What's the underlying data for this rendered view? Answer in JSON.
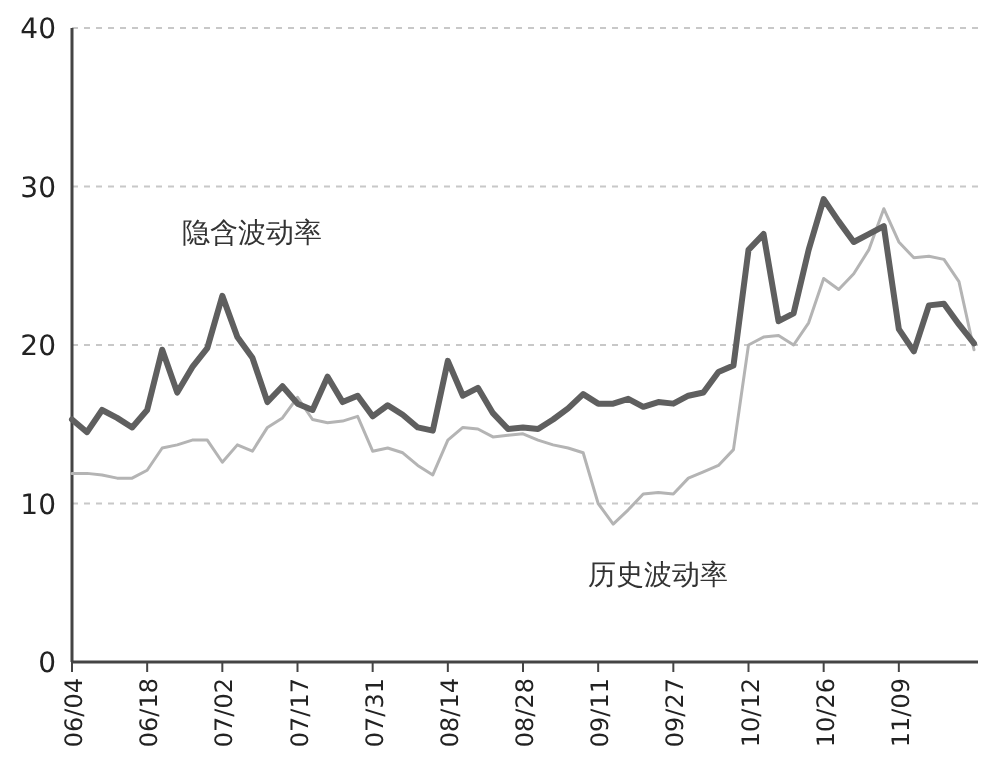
{
  "chart_data": {
    "type": "line",
    "categories": [
      "06/04",
      null,
      null,
      null,
      null,
      "06/18",
      null,
      null,
      null,
      null,
      "07/02",
      null,
      null,
      null,
      null,
      "07/17",
      null,
      null,
      null,
      null,
      "07/31",
      null,
      null,
      null,
      null,
      "08/14",
      null,
      null,
      null,
      null,
      "08/28",
      null,
      null,
      null,
      null,
      "09/11",
      null,
      null,
      null,
      null,
      "09/27",
      null,
      null,
      null,
      null,
      "10/12",
      null,
      null,
      null,
      null,
      "10/26",
      null,
      null,
      null,
      null,
      "11/09",
      null,
      null,
      null,
      null,
      null
    ],
    "series": [
      {
        "name": "隐含波动率",
        "color": "#5f5f5f",
        "values": [
          15.3,
          14.5,
          15.9,
          15.4,
          14.8,
          15.9,
          19.7,
          17.0,
          18.6,
          19.8,
          23.1,
          20.5,
          19.2,
          16.4,
          17.4,
          16.3,
          15.9,
          18.0,
          16.4,
          16.8,
          15.5,
          16.2,
          15.6,
          14.8,
          14.6,
          19.0,
          16.8,
          17.3,
          15.7,
          14.7,
          14.8,
          14.7,
          15.3,
          16.0,
          16.9,
          16.3,
          16.3,
          16.6,
          16.1,
          16.4,
          16.3,
          16.8,
          17.0,
          18.3,
          18.7,
          26.0,
          27.0,
          21.5,
          22.0,
          26.0,
          29.2,
          27.8,
          26.5,
          27.0,
          27.5,
          21.0,
          19.6,
          22.5,
          22.6,
          21.3,
          20.1
        ]
      },
      {
        "name": "历史波动率",
        "color": "#b4b4b4",
        "values": [
          11.9,
          11.9,
          11.8,
          11.6,
          11.6,
          12.1,
          13.5,
          13.7,
          14.0,
          14.0,
          12.6,
          13.7,
          13.3,
          14.8,
          15.4,
          16.7,
          15.3,
          15.1,
          15.2,
          15.5,
          13.3,
          13.5,
          13.2,
          12.4,
          11.8,
          14.0,
          14.8,
          14.7,
          14.2,
          14.3,
          14.4,
          14.0,
          13.7,
          13.5,
          13.2,
          10.0,
          8.7,
          9.6,
          10.6,
          10.7,
          10.6,
          11.6,
          12.0,
          12.4,
          13.4,
          20.0,
          20.5,
          20.6,
          20.0,
          21.4,
          24.2,
          23.5,
          24.5,
          26.0,
          28.6,
          26.5,
          25.5,
          25.6,
          25.4,
          24.0,
          19.7
        ]
      }
    ],
    "ylim": [
      0,
      40
    ],
    "yticks": [
      0,
      10,
      20,
      30,
      40
    ],
    "grid": "y",
    "legend": false
  }
}
